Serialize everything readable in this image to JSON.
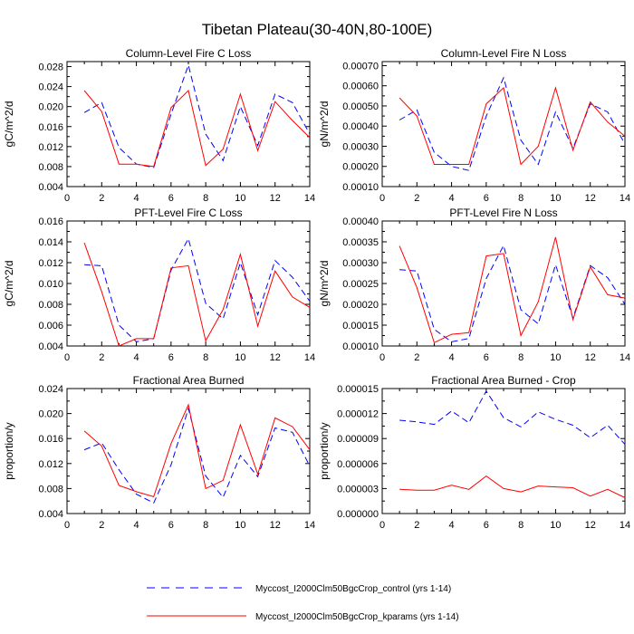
{
  "figure": {
    "title": "Tibetan Plateau(30-40N,80-100E)",
    "series_names": [
      "control",
      "kparams"
    ],
    "legend": [
      {
        "label": "Myccost_I2000Clm50BgcCrop_control (yrs 1-14)",
        "color": "#0000ff",
        "style": "dashed"
      },
      {
        "label": "Myccost_I2000Clm50BgcCrop_kparams (yrs 1-14)",
        "color": "#ff0000",
        "style": "solid"
      }
    ]
  },
  "chart_data": [
    {
      "type": "line",
      "title": "Column-Level Fire C Loss",
      "xlabel": "",
      "ylabel": "gC/m^2/d",
      "xlim": [
        0,
        14
      ],
      "ylim": [
        0.004,
        0.029
      ],
      "xticks": [
        "0",
        "2",
        "4",
        "6",
        "8",
        "10",
        "12",
        "14"
      ],
      "yticks": [
        {
          "value": 0.004,
          "label": "0.004"
        },
        {
          "value": 0.008,
          "label": "0.008"
        },
        {
          "value": 0.012,
          "label": "0.012"
        },
        {
          "value": 0.016,
          "label": "0.016"
        },
        {
          "value": 0.02,
          "label": "0.020"
        },
        {
          "value": 0.024,
          "label": "0.024"
        },
        {
          "value": 0.028,
          "label": "0.028"
        }
      ],
      "x": [
        1,
        2,
        3,
        4,
        5,
        6,
        7,
        8,
        9,
        10,
        11,
        12,
        13,
        14
      ],
      "series": [
        {
          "name": "control",
          "color": "#0000ff",
          "dash": "dashed",
          "values": [
            0.0188,
            0.0208,
            0.0118,
            0.0085,
            0.0078,
            0.0185,
            0.0283,
            0.0145,
            0.0092,
            0.02,
            0.0122,
            0.0225,
            0.0208,
            0.0145
          ]
        },
        {
          "name": "kparams",
          "color": "#ff0000",
          "dash": "solid",
          "values": [
            0.0232,
            0.019,
            0.0085,
            0.0085,
            0.008,
            0.0198,
            0.0232,
            0.0082,
            0.0115,
            0.0225,
            0.0112,
            0.021,
            0.0172,
            0.0138
          ]
        }
      ]
    },
    {
      "type": "line",
      "title": "Column-Level Fire N Loss",
      "xlabel": "",
      "ylabel": "gN/m^2/d",
      "xlim": [
        0,
        14
      ],
      "ylim": [
        0.0001,
        0.00072
      ],
      "xticks": [
        "0",
        "2",
        "4",
        "6",
        "8",
        "10",
        "12",
        "14"
      ],
      "yticks": [
        {
          "value": 0.0001,
          "label": "0.00010"
        },
        {
          "value": 0.0002,
          "label": "0.00020"
        },
        {
          "value": 0.0003,
          "label": "0.00030"
        },
        {
          "value": 0.0004,
          "label": "0.00040"
        },
        {
          "value": 0.0005,
          "label": "0.00050"
        },
        {
          "value": 0.0006,
          "label": "0.00060"
        },
        {
          "value": 0.0007,
          "label": "0.00070"
        }
      ],
      "x": [
        1,
        2,
        3,
        4,
        5,
        6,
        7,
        8,
        9,
        10,
        11,
        12,
        13,
        14
      ],
      "series": [
        {
          "name": "control",
          "color": "#0000ff",
          "dash": "dashed",
          "values": [
            0.00043,
            0.00048,
            0.00027,
            0.0002,
            0.00018,
            0.00045,
            0.00064,
            0.00033,
            0.00021,
            0.00047,
            0.00029,
            0.00051,
            0.00047,
            0.00031
          ]
        },
        {
          "name": "kparams",
          "color": "#ff0000",
          "dash": "solid",
          "values": [
            0.00054,
            0.00045,
            0.00021,
            0.00021,
            0.00021,
            0.00051,
            0.00059,
            0.00021,
            0.0003,
            0.00059,
            0.00028,
            0.00052,
            0.00042,
            0.00035
          ]
        }
      ]
    },
    {
      "type": "line",
      "title": "PFT-Level Fire C Loss",
      "xlabel": "",
      "ylabel": "gC/m^2/d",
      "xlim": [
        0,
        14
      ],
      "ylim": [
        0.004,
        0.016
      ],
      "xticks": [
        "0",
        "2",
        "4",
        "6",
        "8",
        "10",
        "12",
        "14"
      ],
      "yticks": [
        {
          "value": 0.004,
          "label": "0.004"
        },
        {
          "value": 0.006,
          "label": "0.006"
        },
        {
          "value": 0.008,
          "label": "0.008"
        },
        {
          "value": 0.01,
          "label": "0.010"
        },
        {
          "value": 0.012,
          "label": "0.012"
        },
        {
          "value": 0.014,
          "label": "0.014"
        },
        {
          "value": 0.016,
          "label": "0.016"
        }
      ],
      "x": [
        1,
        2,
        3,
        4,
        5,
        6,
        7,
        8,
        9,
        10,
        11,
        12,
        13,
        14
      ],
      "series": [
        {
          "name": "control",
          "color": "#0000ff",
          "dash": "dashed",
          "values": [
            0.0118,
            0.0117,
            0.006,
            0.0044,
            0.0047,
            0.0113,
            0.0143,
            0.0081,
            0.0066,
            0.012,
            0.007,
            0.0122,
            0.0106,
            0.0083
          ]
        },
        {
          "name": "kparams",
          "color": "#ff0000",
          "dash": "solid",
          "values": [
            0.0139,
            0.0092,
            0.004,
            0.0047,
            0.0047,
            0.0115,
            0.0117,
            0.0045,
            0.0075,
            0.0128,
            0.0059,
            0.0112,
            0.0087,
            0.0077
          ]
        }
      ]
    },
    {
      "type": "line",
      "title": "PFT-Level Fire N Loss",
      "xlabel": "",
      "ylabel": "gN/m^2/d",
      "xlim": [
        0,
        14
      ],
      "ylim": [
        0.0001,
        0.0004
      ],
      "xticks": [
        "0",
        "2",
        "4",
        "6",
        "8",
        "10",
        "12",
        "14"
      ],
      "yticks": [
        {
          "value": 0.0001,
          "label": "0.00010"
        },
        {
          "value": 0.00015,
          "label": "0.00015"
        },
        {
          "value": 0.0002,
          "label": "0.00020"
        },
        {
          "value": 0.00025,
          "label": "0.00025"
        },
        {
          "value": 0.0003,
          "label": "0.00030"
        },
        {
          "value": 0.00035,
          "label": "0.00035"
        },
        {
          "value": 0.0004,
          "label": "0.00040"
        }
      ],
      "x": [
        1,
        2,
        3,
        4,
        5,
        6,
        7,
        8,
        9,
        10,
        11,
        12,
        13,
        14
      ],
      "series": [
        {
          "name": "control",
          "color": "#0000ff",
          "dash": "dashed",
          "values": [
            0.000283,
            0.00028,
            0.00014,
            0.00011,
            0.000118,
            0.000262,
            0.000341,
            0.000187,
            0.000153,
            0.000295,
            0.000167,
            0.000293,
            0.000264,
            0.0002
          ]
        },
        {
          "name": "kparams",
          "color": "#ff0000",
          "dash": "solid",
          "values": [
            0.00034,
            0.00024,
            0.000108,
            0.000128,
            0.000132,
            0.000316,
            0.000322,
            0.000125,
            0.000206,
            0.000361,
            0.000163,
            0.00029,
            0.000223,
            0.000215
          ]
        }
      ]
    },
    {
      "type": "line",
      "title": "Fractional Area Burned",
      "xlabel": "",
      "ylabel": "proportion/y",
      "xlim": [
        0,
        14
      ],
      "ylim": [
        0.004,
        0.024
      ],
      "xticks": [
        "0",
        "2",
        "4",
        "6",
        "8",
        "10",
        "12",
        "14"
      ],
      "yticks": [
        {
          "value": 0.004,
          "label": "0.004"
        },
        {
          "value": 0.008,
          "label": "0.008"
        },
        {
          "value": 0.012,
          "label": "0.012"
        },
        {
          "value": 0.016,
          "label": "0.016"
        },
        {
          "value": 0.02,
          "label": "0.020"
        },
        {
          "value": 0.024,
          "label": "0.024"
        }
      ],
      "x": [
        1,
        2,
        3,
        4,
        5,
        6,
        7,
        8,
        9,
        10,
        11,
        12,
        13,
        14
      ],
      "series": [
        {
          "name": "control",
          "color": "#0000ff",
          "dash": "dashed",
          "values": [
            0.0142,
            0.0153,
            0.011,
            0.0071,
            0.0057,
            0.0118,
            0.0208,
            0.01,
            0.0066,
            0.0133,
            0.0099,
            0.0177,
            0.017,
            0.0116
          ]
        },
        {
          "name": "kparams",
          "color": "#ff0000",
          "dash": "solid",
          "values": [
            0.0172,
            0.0148,
            0.0085,
            0.0075,
            0.0067,
            0.0152,
            0.0214,
            0.008,
            0.0093,
            0.0182,
            0.0103,
            0.0193,
            0.0179,
            0.0142
          ]
        }
      ]
    },
    {
      "type": "line",
      "title": "Fractional Area Burned - Crop",
      "xlabel": "",
      "ylabel": "proportion/y",
      "xlim": [
        0,
        14
      ],
      "ylim": [
        0,
        1.5e-05
      ],
      "xticks": [
        "0",
        "2",
        "4",
        "6",
        "8",
        "10",
        "12",
        "14"
      ],
      "yticks": [
        {
          "value": 0,
          "label": "0.000000"
        },
        {
          "value": 3e-06,
          "label": "0.000003"
        },
        {
          "value": 6e-06,
          "label": "0.000006"
        },
        {
          "value": 9e-06,
          "label": "0.000009"
        },
        {
          "value": 1.2e-05,
          "label": "0.000012"
        },
        {
          "value": 1.5e-05,
          "label": "0.000015"
        }
      ],
      "x": [
        1,
        2,
        3,
        4,
        5,
        6,
        7,
        8,
        9,
        10,
        11,
        12,
        13,
        14
      ],
      "series": [
        {
          "name": "control",
          "color": "#0000ff",
          "dash": "dashed",
          "values": [
            1.12e-05,
            1.1e-05,
            1.07e-05,
            1.23e-05,
            1.09e-05,
            1.47e-05,
            1.15e-05,
            1.04e-05,
            1.22e-05,
            1.13e-05,
            1.06e-05,
            9.1e-06,
            1.06e-05,
            8.3e-06
          ]
        },
        {
          "name": "kparams",
          "color": "#ff0000",
          "dash": "solid",
          "values": [
            2.9e-06,
            2.8e-06,
            2.8e-06,
            3.4e-06,
            2.9e-06,
            4.5e-06,
            3e-06,
            2.6e-06,
            3.3e-06,
            3.2e-06,
            3.1e-06,
            2.1e-06,
            2.9e-06,
            1.9e-06
          ]
        }
      ]
    }
  ]
}
